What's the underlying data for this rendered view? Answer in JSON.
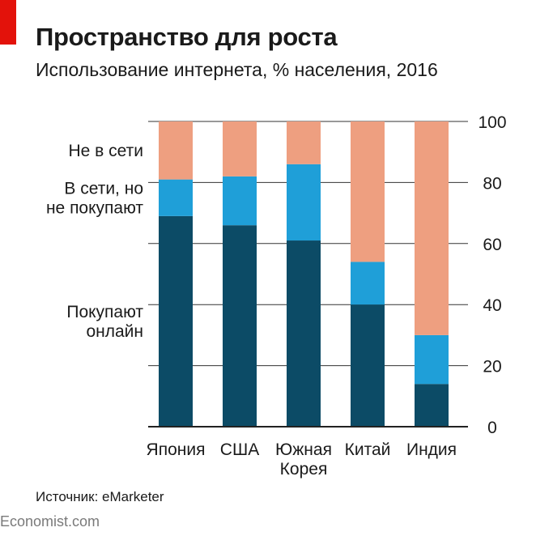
{
  "header": {
    "title": "Пространство для роста",
    "subtitle": "Использование интернета, % населения, 2016"
  },
  "footer": {
    "source": "Источник: eMarketer",
    "brand": "Economist.com"
  },
  "colors": {
    "accent": "#e3120b",
    "buy_online": "#0c4b66",
    "online_not_buying": "#1f9fd8",
    "offline": "#ee9f80"
  },
  "chart_data": {
    "type": "bar",
    "stacked": true,
    "categories": [
      [
        "Япония"
      ],
      [
        "США"
      ],
      [
        "Южная",
        "Корея"
      ],
      [
        "Китай"
      ],
      [
        "Индия"
      ]
    ],
    "series": [
      {
        "name": [
          "Покупают",
          "онлайн"
        ],
        "values": [
          69,
          66,
          61,
          40,
          14
        ],
        "color": "#0c4b66"
      },
      {
        "name": [
          "В сети, но",
          "не покупают"
        ],
        "values": [
          12,
          16,
          25,
          14,
          16
        ],
        "color": "#1f9fd8"
      },
      {
        "name": [
          "Не в сети"
        ],
        "values": [
          19,
          18,
          14,
          46,
          70
        ],
        "color": "#ee9f80"
      }
    ],
    "yaxis": {
      "side": "right",
      "ylim": [
        0,
        100
      ],
      "ticks": [
        0,
        20,
        40,
        60,
        80,
        100
      ]
    },
    "grid": true,
    "legend": "left"
  }
}
